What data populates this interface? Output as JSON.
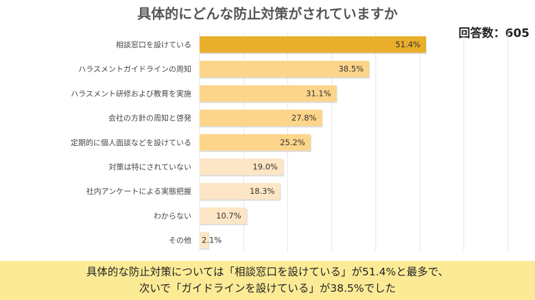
{
  "chart_data": {
    "type": "bar",
    "orientation": "horizontal",
    "title": "具体的にどんな防止対策がされていますか",
    "categories": [
      "相談窓口を設けている",
      "ハラスメントガイドラインの周知",
      "ハラスメント研修および教育を実施",
      "会社の方針の周知と啓発",
      "定期的に個人面談などを設けている",
      "対策は特にされていない",
      "社内アンケートによる実態把握",
      "わからない",
      "その他"
    ],
    "values": [
      51.4,
      38.5,
      31.1,
      27.8,
      25.2,
      19.0,
      18.3,
      10.7,
      2.1
    ],
    "data_labels": [
      "51.4%",
      "38.5%",
      "31.1%",
      "27.8%",
      "25.2%",
      "19.0%",
      "18.3%",
      "10.7%",
      "2.1%"
    ],
    "bar_colors": [
      "#E9AE2A",
      "#FDD58A",
      "#FDD58A",
      "#FDD58A",
      "#FDD58A",
      "#FDE6C6",
      "#FDE6C6",
      "#FDE6C6",
      "#FDE6C6"
    ],
    "xlim": [
      0,
      70
    ],
    "grid": true
  },
  "respondents": "回答数：605",
  "footer": {
    "line1": "具体的な防止対策については「相談窓口を設けている」が51.4%と最多で、",
    "line2": "次いで「ガイドラインを設けている」が38.5%でした"
  }
}
